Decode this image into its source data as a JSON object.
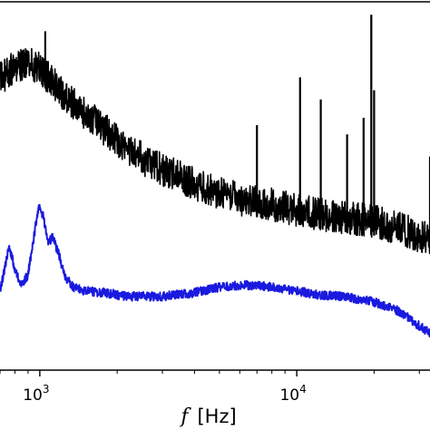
{
  "chart_data": {
    "type": "line",
    "xscale": "log",
    "yscale": "linear",
    "xlim": [
      700,
      33000
    ],
    "ylim": [
      0,
      1
    ],
    "grid": false,
    "legend": "none",
    "xlabel": {
      "symbol": "f",
      "unit": "[Hz]"
    },
    "xticks": [
      {
        "value": 1000,
        "base": "10",
        "exp": "3"
      },
      {
        "value": 10000,
        "base": "10",
        "exp": "4"
      }
    ],
    "series": [
      {
        "color": "#000000",
        "noise": 0.045,
        "x": [
          700,
          800,
          900,
          1000,
          1100,
          1200,
          1400,
          1700,
          2000,
          2500,
          3000,
          4000,
          5000,
          6000,
          7000,
          8000,
          10000,
          12000,
          15000,
          20000,
          25000,
          33000
        ],
        "y": [
          0.79,
          0.825,
          0.835,
          0.82,
          0.79,
          0.755,
          0.715,
          0.665,
          0.625,
          0.575,
          0.545,
          0.505,
          0.48,
          0.465,
          0.455,
          0.45,
          0.435,
          0.425,
          0.415,
          0.405,
          0.385,
          0.355
        ],
        "peaks": [
          {
            "x": 1050,
            "y": 0.92
          },
          {
            "x": 7000,
            "y": 0.665
          },
          {
            "x": 10300,
            "y": 0.795
          },
          {
            "x": 12400,
            "y": 0.735
          },
          {
            "x": 15700,
            "y": 0.64
          },
          {
            "x": 18200,
            "y": 0.685
          },
          {
            "x": 19500,
            "y": 0.965
          },
          {
            "x": 20000,
            "y": 0.76
          },
          {
            "x": 33000,
            "y": 0.58
          }
        ]
      },
      {
        "color": "#1a1adf",
        "noise": 0.012,
        "x": [
          700,
          760,
          800,
          850,
          900,
          960,
          990,
          1030,
          1080,
          1120,
          1180,
          1250,
          1350,
          1500,
          1800,
          2200,
          3000,
          4000,
          5000,
          6000,
          7000,
          8000,
          10000,
          12000,
          15000,
          20000,
          25000,
          30000,
          33000
        ],
        "y": [
          0.215,
          0.335,
          0.275,
          0.23,
          0.26,
          0.385,
          0.445,
          0.42,
          0.345,
          0.36,
          0.32,
          0.255,
          0.225,
          0.215,
          0.21,
          0.2,
          0.2,
          0.21,
          0.225,
          0.23,
          0.23,
          0.225,
          0.215,
          0.205,
          0.2,
          0.185,
          0.16,
          0.12,
          0.1
        ],
        "peaks": []
      }
    ]
  }
}
